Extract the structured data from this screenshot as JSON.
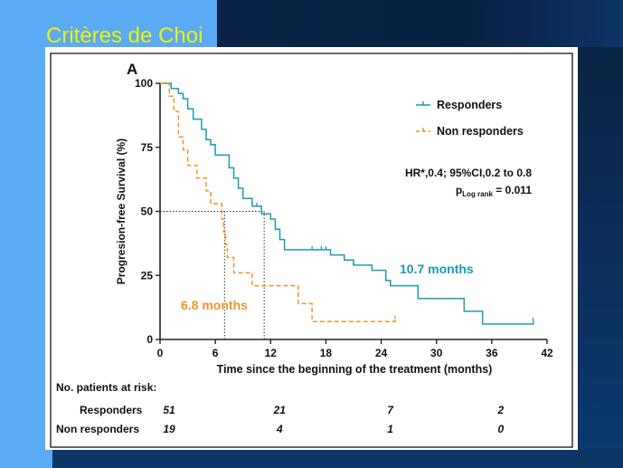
{
  "slide": {
    "title": "Critères de Choi"
  },
  "chart_data": {
    "type": "line",
    "panel_label": "A",
    "xlabel": "Time since the beginning of the treatment (months)",
    "ylabel": "Progresion-free Survival (%)",
    "xlim": [
      0,
      42
    ],
    "ylim": [
      0,
      100
    ],
    "xticks": [
      0,
      6,
      12,
      18,
      24,
      30,
      36,
      42
    ],
    "yticks": [
      0,
      25,
      50,
      75,
      100
    ],
    "legend_position": "top-right",
    "series": [
      {
        "name": "Responders",
        "color": "#1a9bb0",
        "step_points": [
          [
            0,
            100
          ],
          [
            1.2,
            100
          ],
          [
            1.2,
            98
          ],
          [
            2,
            98
          ],
          [
            2,
            96
          ],
          [
            2.5,
            96
          ],
          [
            2.5,
            94
          ],
          [
            3,
            94
          ],
          [
            3,
            90
          ],
          [
            3.6,
            90
          ],
          [
            3.6,
            86
          ],
          [
            4.5,
            86
          ],
          [
            4.5,
            82
          ],
          [
            5,
            82
          ],
          [
            5,
            78
          ],
          [
            5.5,
            78
          ],
          [
            5.5,
            76
          ],
          [
            6,
            76
          ],
          [
            6,
            72
          ],
          [
            7.5,
            72
          ],
          [
            7.5,
            67
          ],
          [
            8,
            67
          ],
          [
            8,
            63
          ],
          [
            8.5,
            63
          ],
          [
            8.5,
            59
          ],
          [
            9,
            59
          ],
          [
            9,
            55
          ],
          [
            10,
            55
          ],
          [
            10,
            52
          ],
          [
            11,
            52
          ],
          [
            11,
            49
          ],
          [
            12,
            49
          ],
          [
            12,
            47
          ],
          [
            12.5,
            47
          ],
          [
            12.5,
            43
          ],
          [
            13,
            43
          ],
          [
            13,
            39
          ],
          [
            13.5,
            39
          ],
          [
            13.5,
            35
          ],
          [
            18.5,
            35
          ],
          [
            18.5,
            33
          ],
          [
            20,
            33
          ],
          [
            20,
            31
          ],
          [
            21,
            31
          ],
          [
            21,
            29
          ],
          [
            23,
            29
          ],
          [
            23,
            27
          ],
          [
            24.5,
            27
          ],
          [
            24.5,
            23
          ],
          [
            25,
            23
          ],
          [
            25,
            21
          ],
          [
            28,
            21
          ],
          [
            28,
            16
          ],
          [
            33,
            16
          ],
          [
            33,
            11
          ],
          [
            35,
            11
          ],
          [
            35,
            6
          ],
          [
            40.5,
            6
          ],
          [
            40.5,
            7
          ]
        ],
        "censor_times": [
          10.5,
          16.5,
          17.5,
          18,
          21,
          24.5,
          25,
          40.5
        ]
      },
      {
        "name": "Non responders",
        "color": "#f0932a",
        "step_points": [
          [
            0,
            100
          ],
          [
            1,
            100
          ],
          [
            1,
            95
          ],
          [
            1.5,
            95
          ],
          [
            1.5,
            89
          ],
          [
            2,
            89
          ],
          [
            2,
            79
          ],
          [
            2.5,
            79
          ],
          [
            2.5,
            74
          ],
          [
            3,
            74
          ],
          [
            3,
            68
          ],
          [
            4,
            68
          ],
          [
            4,
            63
          ],
          [
            5,
            63
          ],
          [
            5,
            58
          ],
          [
            5.5,
            58
          ],
          [
            5.5,
            53
          ],
          [
            6.7,
            53
          ],
          [
            6.7,
            47
          ],
          [
            6.9,
            47
          ],
          [
            6.9,
            42
          ],
          [
            7.1,
            42
          ],
          [
            7.1,
            37
          ],
          [
            7.3,
            37
          ],
          [
            7.3,
            32
          ],
          [
            8,
            32
          ],
          [
            8,
            26
          ],
          [
            10,
            26
          ],
          [
            10,
            21
          ],
          [
            12,
            21
          ],
          [
            12,
            21
          ],
          [
            15,
            21
          ],
          [
            15,
            14
          ],
          [
            16.5,
            14
          ],
          [
            16.5,
            7
          ],
          [
            25.5,
            7
          ],
          [
            25.5,
            8
          ]
        ],
        "censor_times": [
          25.5
        ]
      }
    ],
    "annotations": {
      "hr_line": "HR*,0.4; 95%CI,0.2 to 0.8",
      "p_prefix": "p",
      "p_subscript": "Log rank",
      "p_suffix": " = 0.011",
      "median_responders": {
        "label": "10.7 months",
        "x": 11.3,
        "y": 50
      },
      "median_non_responders": {
        "label": "6.8 months",
        "x": 7,
        "y": 50
      }
    },
    "at_risk": {
      "header": "No. patients at risk:",
      "times": [
        0,
        12,
        24,
        36
      ],
      "rows": [
        {
          "label": "Responders",
          "values": [
            "51",
            "21",
            "7",
            "2"
          ]
        },
        {
          "label": "Non responders",
          "values": [
            "19",
            "4",
            "1",
            "0"
          ]
        }
      ]
    }
  }
}
